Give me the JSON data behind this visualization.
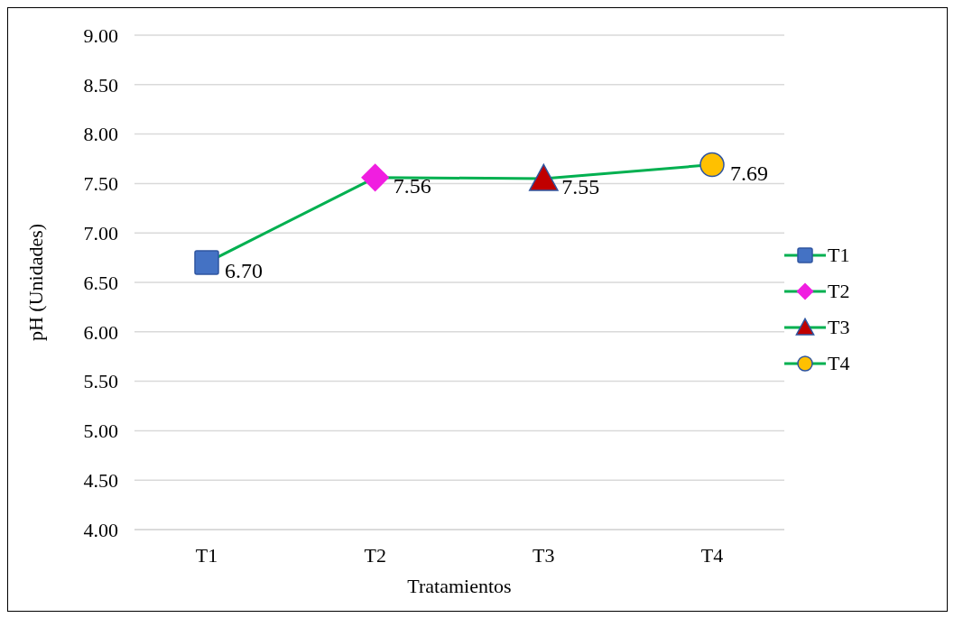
{
  "chart_data": {
    "type": "line",
    "xlabel": "Tratamientos",
    "ylabel": "pH (Unidades)",
    "categories": [
      "T1",
      "T2",
      "T3",
      "T4"
    ],
    "series": [
      {
        "color": "#00b050",
        "marker": "none",
        "values": [
          6.7,
          7.56,
          7.55,
          7.69
        ],
        "value_labels": [
          "6.70",
          "7.56",
          "7.55",
          "7.69"
        ]
      },
      {
        "type": "scatter",
        "name": "T1",
        "color": "#4472c4",
        "marker": "square",
        "x": [
          "T1"
        ],
        "values": [
          6.7
        ]
      },
      {
        "type": "scatter",
        "name": "T2",
        "color": "#f01ee0",
        "marker": "diamond",
        "x": [
          "T2"
        ],
        "values": [
          7.56
        ]
      },
      {
        "type": "scatter",
        "name": "T3",
        "color": "#c00000",
        "marker": "triangle",
        "x": [
          "T3"
        ],
        "values": [
          7.55
        ]
      },
      {
        "type": "scatter",
        "name": "T4",
        "color": "#ffc000",
        "marker": "circle",
        "x": [
          "T4"
        ],
        "values": [
          7.69
        ]
      }
    ],
    "ylim": [
      4,
      9
    ],
    "yticks": [
      {
        "value": 4,
        "label": "4.00"
      },
      {
        "value": 4.5,
        "label": "4.50"
      },
      {
        "value": 5,
        "label": "5.00"
      },
      {
        "value": 5.5,
        "label": "5.50"
      },
      {
        "value": 6,
        "label": "6.00"
      },
      {
        "value": 6.5,
        "label": "6.50"
      },
      {
        "value": 7,
        "label": "7.00"
      },
      {
        "value": 7.5,
        "label": "7.50"
      },
      {
        "value": 8,
        "label": "8.00"
      },
      {
        "value": 8.5,
        "label": "8.50"
      },
      {
        "value": 9,
        "label": "9.00"
      }
    ],
    "grid": "y",
    "legend": "right",
    "line_style": "solid"
  }
}
